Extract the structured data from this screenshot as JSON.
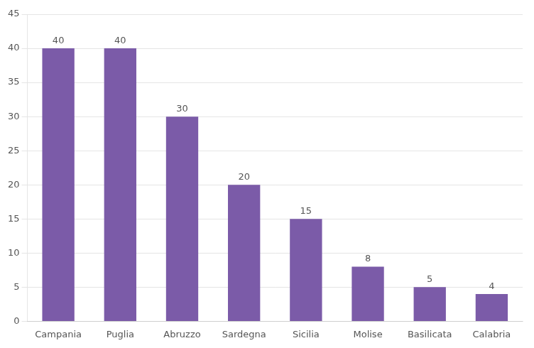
{
  "chart_data": {
    "type": "bar",
    "categories": [
      "Campania",
      "Puglia",
      "Abruzzo",
      "Sardegna",
      "Sicilia",
      "Molise",
      "Basilicata",
      "Calabria"
    ],
    "values": [
      40,
      40,
      30,
      20,
      15,
      8,
      5,
      4
    ],
    "color": "#7B5BA8",
    "ylim": [
      0,
      45
    ],
    "yticks": [
      0,
      5,
      10,
      15,
      20,
      25,
      30,
      35,
      40,
      45
    ],
    "grid": true,
    "data_labels": true
  }
}
